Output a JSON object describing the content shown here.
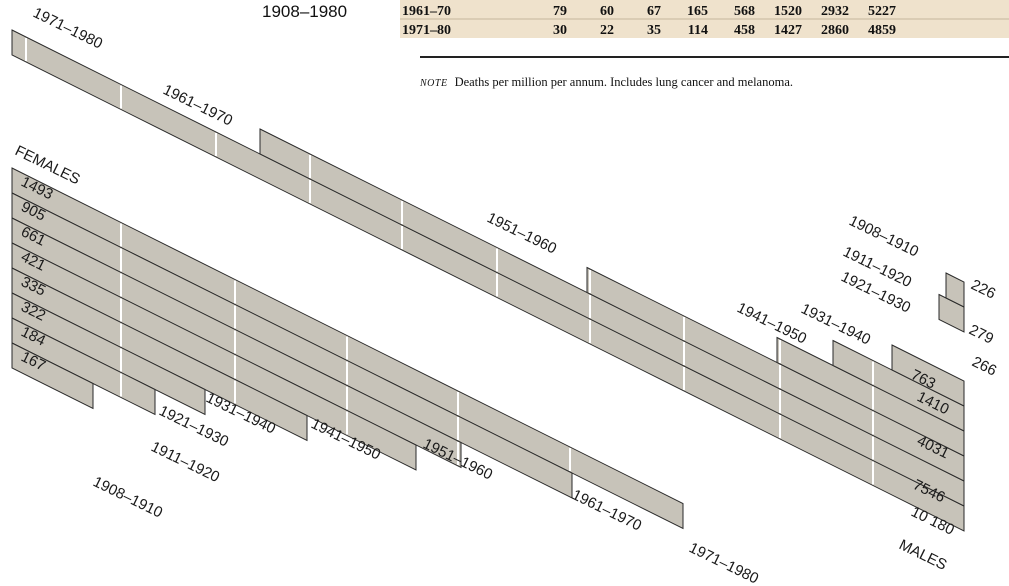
{
  "title_fragment": "1908–1980",
  "table": {
    "rows": [
      {
        "period": "1961–70",
        "values": [
          "79",
          "60",
          "67",
          "165",
          "568",
          "1520",
          "2932",
          "5227"
        ]
      },
      {
        "period": "1971–80",
        "values": [
          "30",
          "22",
          "35",
          "114",
          "458",
          "1427",
          "2860",
          "4859"
        ]
      }
    ]
  },
  "note": {
    "tag": "NOTE",
    "text": "Deaths per million per annum. Includes lung cancer and melanoma."
  },
  "chart_data": {
    "type": "area",
    "description_units": "Deaths per million per annum",
    "females": {
      "label": "FEMALES",
      "cohorts": [
        {
          "period": "1908–1910",
          "value": "167"
        },
        {
          "period": "1911–1920",
          "value": "184"
        },
        {
          "period": "1921–1930",
          "value": "322"
        },
        {
          "period": "1931–1940",
          "value": "335"
        },
        {
          "period": "1941–1950",
          "value": "421"
        },
        {
          "period": "1951–1960",
          "value": "661"
        },
        {
          "period": "1961–1970",
          "value": "905"
        },
        {
          "period": "1971–1980",
          "value": "1493"
        }
      ]
    },
    "males": {
      "label": "MALES",
      "cohorts": [
        {
          "period": "1908–1910",
          "value": "226"
        },
        {
          "period": "1911–1920",
          "value": "279"
        },
        {
          "period": "1921–1930",
          "value": "266"
        },
        {
          "period": "1931–1940",
          "value": "763"
        },
        {
          "period": "1941–1950",
          "value": "1410"
        },
        {
          "period": "1951–1960",
          "value": "4031"
        },
        {
          "period": "1961–1970",
          "value": "7546"
        },
        {
          "period": "1971–1980",
          "value": "10 180"
        }
      ]
    }
  }
}
